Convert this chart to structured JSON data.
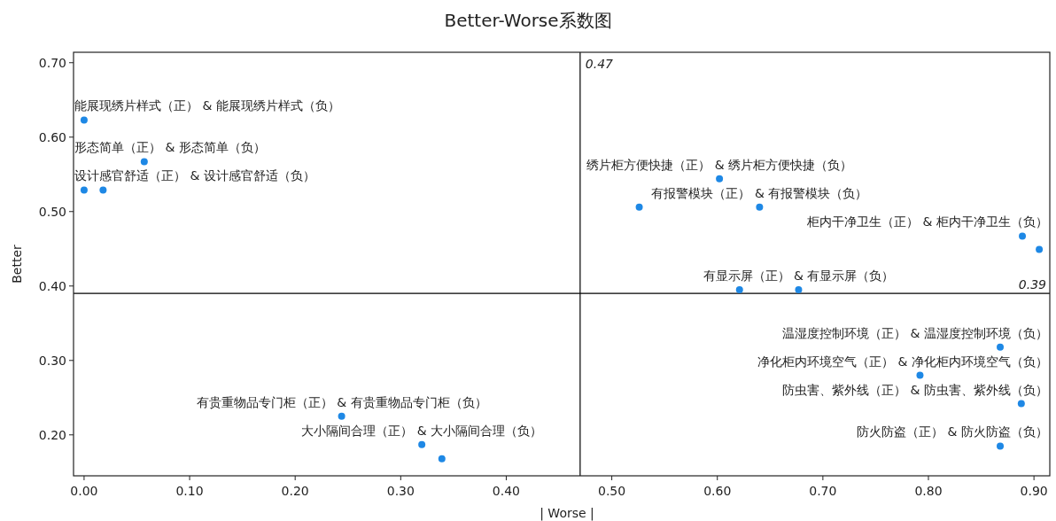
{
  "chart_data": {
    "type": "scatter",
    "title": "Better-Worse系数图",
    "xlabel": "| Worse |",
    "ylabel": "Better",
    "color": "#1e88e5",
    "marker": "circle",
    "x": [
      0.0,
      0.057,
      0.0,
      0.018,
      0.602,
      0.526,
      0.64,
      0.889,
      0.905,
      0.621,
      0.677,
      0.244,
      0.32,
      0.339,
      0.868,
      0.792,
      0.888,
      0.868
    ],
    "values": [
      0.623,
      0.567,
      0.529,
      0.529,
      0.544,
      0.506,
      0.506,
      0.467,
      0.449,
      0.395,
      0.395,
      0.225,
      0.187,
      0.168,
      0.318,
      0.28,
      0.242,
      0.185
    ],
    "xlim": [
      -0.01,
      0.915
    ],
    "ylim": [
      0.145,
      0.714
    ],
    "xticks": [
      {
        "value": 0,
        "label": "0.00"
      },
      {
        "value": 0.1,
        "label": "0.10"
      },
      {
        "value": 0.2,
        "label": "0.20"
      },
      {
        "value": 0.3,
        "label": "0.30"
      },
      {
        "value": 0.4,
        "label": "0.40"
      },
      {
        "value": 0.5,
        "label": "0.50"
      },
      {
        "value": 0.6,
        "label": "0.60"
      },
      {
        "value": 0.7,
        "label": "0.70"
      },
      {
        "value": 0.8,
        "label": "0.80"
      },
      {
        "value": 0.9,
        "label": "0.90"
      }
    ],
    "yticks": [
      {
        "value": 0.2,
        "label": "0.20"
      },
      {
        "value": 0.3,
        "label": "0.30"
      },
      {
        "value": 0.4,
        "label": "0.40"
      },
      {
        "value": 0.5,
        "label": "0.50"
      },
      {
        "value": 0.6,
        "label": "0.60"
      },
      {
        "value": 0.7,
        "label": "0.70"
      }
    ],
    "ref_lines": [
      {
        "axis": "x",
        "value": 0.47,
        "label": "0.47",
        "color": "#000000"
      },
      {
        "axis": "y",
        "value": 0.39,
        "label": "0.39",
        "color": "#000000"
      }
    ],
    "annotations": [
      {
        "text": "能展现绣片样式（正） & 能展现绣片样式（负）",
        "x": 0.0,
        "y": 0.623
      },
      {
        "text": "形态简单（正） & 形态简单（负）",
        "x": 0.057,
        "y": 0.567
      },
      {
        "text": "设计感官舒适（正） & 设计感官舒适（负）",
        "x": 0.018,
        "y": 0.529
      },
      {
        "text": "绣片柜方便快捷（正） & 绣片柜方便快捷（负）",
        "x": 0.602,
        "y": 0.544
      },
      {
        "text": "有报警模块（正） & 有报警模块（负）",
        "x": 0.64,
        "y": 0.506
      },
      {
        "text": "柜内干净卫生（正） & 柜内干净卫生（负）",
        "x": 0.889,
        "y": 0.467
      },
      {
        "text": "有显示屏（正） & 有显示屏（负）",
        "x": 0.677,
        "y": 0.395
      },
      {
        "text": "温湿度控制环境（正） & 温湿度控制环境（负）",
        "x": 0.868,
        "y": 0.318
      },
      {
        "text": "净化柜内环境空气（正） & 净化柜内环境空气（负）",
        "x": 0.792,
        "y": 0.28
      },
      {
        "text": "防虫害、紫外线（正） & 防虫害、紫外线（负）",
        "x": 0.888,
        "y": 0.242
      },
      {
        "text": "防火防盗（正） & 防火防盗（负）",
        "x": 0.868,
        "y": 0.185
      },
      {
        "text": "有贵重物品专门柜（正） & 有贵重物品专门柜（负）",
        "x": 0.244,
        "y": 0.225
      },
      {
        "text": "大小隔间合理（正） & 大小隔间合理（负）",
        "x": 0.32,
        "y": 0.187
      }
    ]
  }
}
